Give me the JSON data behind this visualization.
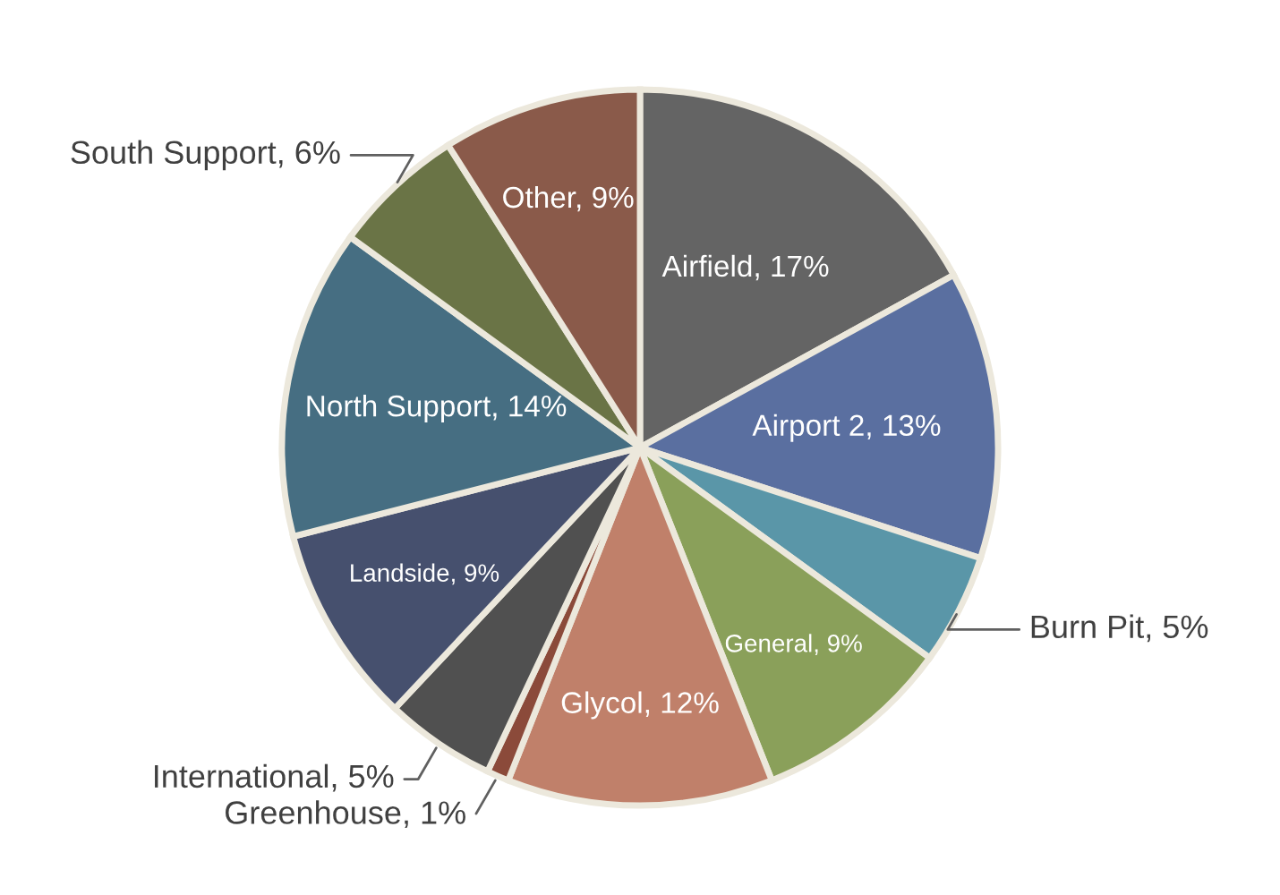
{
  "chart_data": {
    "type": "pie",
    "categories": [
      "Airfield",
      "Airport 2",
      "Burn Pit",
      "General",
      "Glycol",
      "Greenhouse",
      "International",
      "Landside",
      "North Support",
      "South Support",
      "Other"
    ],
    "values": [
      17,
      13,
      5,
      9,
      12,
      1,
      5,
      9,
      14,
      6,
      9
    ],
    "value_labels": [
      "17%",
      "13%",
      "5%",
      "9%",
      "12%",
      "1%",
      "5%",
      "9%",
      "14%",
      "6%",
      "9%"
    ],
    "colors": [
      "#646464",
      "#5a6fa0",
      "#5a96a8",
      "#8aa05a",
      "#c0806a",
      "#8b4a3a",
      "#505050",
      "#46506e",
      "#466e82",
      "#6a7446",
      "#8a5a4a"
    ],
    "legend": false
  }
}
